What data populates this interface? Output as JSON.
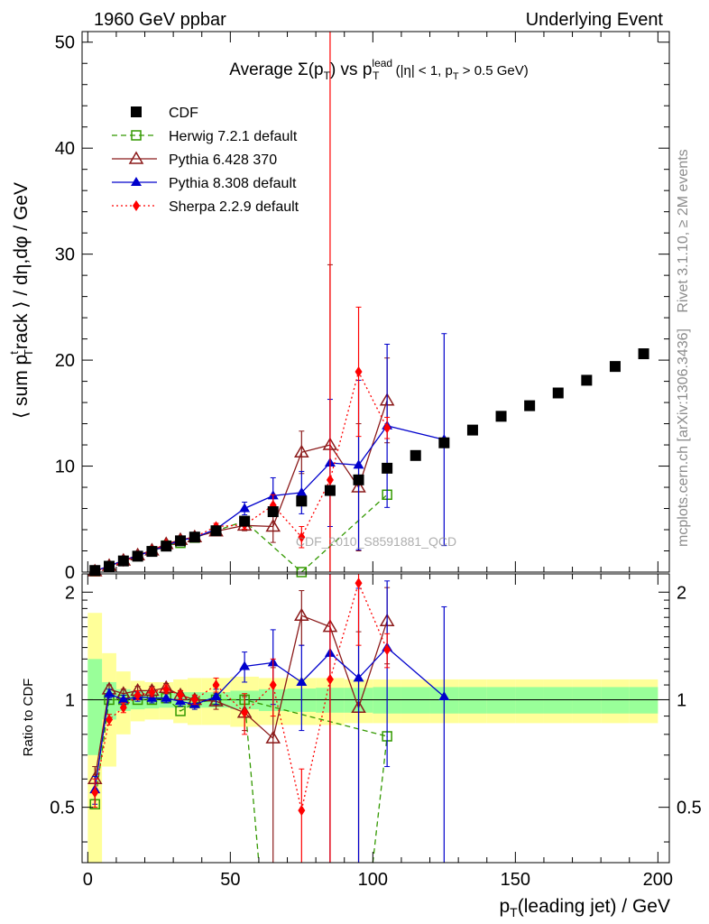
{
  "header": {
    "left": "1960 GeV ppbar",
    "right": "Underlying Event"
  },
  "side_labels": {
    "rivet": "Rivet 3.1.10, ≥ 2M events",
    "mcplots": "mcplots.cern.ch [arXiv:1306.3436]"
  },
  "watermark": "CDF_2010_S8591881_QCD",
  "chart_data": [
    {
      "type": "scatter",
      "title": {
        "prefix": "Average ",
        "sigma": "Σ(p",
        "sub_t": "T",
        "vs": ") vs p",
        "sup_lead": "lead",
        "sub_t2": "T",
        "cuts_a": " (|η| < 1, p",
        "sub_t3": "T",
        "cuts_b": " > 0.5 GeV)"
      },
      "ylabel": {
        "a": "⟨ sum p",
        "sup": "t",
        "sub": "T",
        "b": "rack ⟩ / dη,dφ / GeV"
      },
      "ylim": [
        0,
        51
      ],
      "xlim": [
        -2,
        204
      ],
      "y_ticks": [
        0,
        10,
        20,
        30,
        40,
        50
      ],
      "grid": false,
      "legend_position": "top-left",
      "series": [
        {
          "name": "CDF",
          "color": "#000000",
          "marker": "square-filled",
          "x": [
            2.5,
            7.5,
            12.5,
            17.5,
            22.5,
            27.5,
            32.5,
            37.5,
            45,
            55,
            65,
            75,
            85,
            95,
            105,
            115,
            125,
            135,
            145,
            155,
            165,
            175,
            185,
            195
          ],
          "y": [
            0.15,
            0.55,
            1.05,
            1.5,
            1.95,
            2.45,
            2.95,
            3.3,
            3.9,
            4.8,
            5.7,
            6.7,
            7.7,
            8.7,
            9.8,
            11.0,
            12.2,
            13.4,
            14.7,
            15.7,
            16.9,
            18.1,
            19.4,
            20.6
          ]
        },
        {
          "name": "Herwig 7.2.1 default",
          "color": "#339900",
          "marker": "square-open",
          "line": "dashed",
          "x": [
            2.5,
            7.5,
            12.5,
            17.5,
            22.5,
            27.5,
            32.5,
            37.5,
            45,
            55,
            75,
            105
          ],
          "y": [
            0.08,
            0.55,
            1.05,
            1.5,
            1.95,
            2.5,
            2.75,
            3.25,
            3.9,
            4.8,
            0.0,
            7.3
          ]
        },
        {
          "name": "Pythia 6.428 370",
          "color": "#8b1a1a",
          "marker": "triangle-open",
          "line": "solid",
          "x": [
            2.5,
            7.5,
            12.5,
            17.5,
            22.5,
            27.5,
            32.5,
            37.5,
            45,
            55,
            65,
            75,
            85,
            95,
            105
          ],
          "y": [
            0.08,
            0.6,
            1.1,
            1.6,
            2.05,
            2.65,
            3.05,
            3.3,
            3.85,
            4.4,
            4.3,
            11.3,
            12.0,
            8.0,
            16.2
          ],
          "err": [
            0.05,
            0.05,
            0.05,
            0.05,
            0.1,
            0.1,
            0.15,
            0.15,
            0.2,
            0.5,
            1.5,
            2.0,
            17.0,
            6.0,
            4.0
          ]
        },
        {
          "name": "Pythia 8.308 default",
          "color": "#0000cc",
          "marker": "triangle-filled",
          "line": "solid",
          "x": [
            2.5,
            7.5,
            12.5,
            17.5,
            22.5,
            27.5,
            32.5,
            37.5,
            45,
            55,
            65,
            75,
            85,
            95,
            105,
            125
          ],
          "y": [
            0.09,
            0.58,
            1.07,
            1.55,
            2.0,
            2.5,
            3.0,
            3.25,
            4.05,
            6.0,
            7.2,
            7.5,
            10.3,
            10.1,
            13.8,
            12.5
          ],
          "err": [
            0.05,
            0.05,
            0.05,
            0.05,
            0.1,
            0.1,
            0.1,
            0.15,
            0.2,
            0.6,
            1.7,
            2.0,
            6.0,
            8.0,
            7.7,
            10.0
          ]
        },
        {
          "name": "Sherpa 2.2.9 default",
          "color": "#ff0000",
          "marker": "diamond-filled",
          "line": "dotted",
          "x": [
            2.5,
            7.5,
            12.5,
            17.5,
            22.5,
            27.5,
            32.5,
            37.5,
            45,
            55,
            65,
            75,
            85,
            95,
            105
          ],
          "y": [
            0.08,
            0.48,
            1.0,
            1.55,
            2.05,
            2.65,
            3.05,
            3.3,
            4.3,
            4.45,
            6.3,
            3.3,
            8.7,
            18.9,
            13.6
          ],
          "err": [
            0.05,
            0.05,
            0.05,
            0.05,
            0.1,
            0.1,
            0.1,
            0.15,
            0.3,
            0.4,
            1.0,
            1.0,
            200,
            6.1,
            1.0
          ]
        }
      ]
    },
    {
      "type": "scatter",
      "ylabel": "Ratio to CDF",
      "xlabel": {
        "a": "p",
        "sub": "T",
        "b": "(leading jet) / GeV"
      },
      "xlim": [
        -2,
        204
      ],
      "ylim": [
        0.35,
        2.25
      ],
      "y_scale": "log",
      "y_ticks": [
        0.5,
        1,
        2
      ],
      "x_ticks": [
        0,
        50,
        100,
        150,
        200
      ],
      "reference_line": 1,
      "bands": {
        "inner_color": "#99ff99",
        "outer_color": "#ffff99",
        "edges": [
          0,
          5,
          10,
          15,
          20,
          25,
          30,
          35,
          40,
          50,
          60,
          70,
          80,
          90,
          100,
          110,
          120,
          130,
          140,
          150,
          160,
          170,
          180,
          190,
          200
        ],
        "inner": [
          0.3,
          0.12,
          0.07,
          0.06,
          0.055,
          0.05,
          0.05,
          0.05,
          0.05,
          0.06,
          0.07,
          0.075,
          0.08,
          0.08,
          0.085,
          0.085,
          0.085,
          0.085,
          0.085,
          0.085,
          0.085,
          0.085,
          0.085,
          0.085
        ],
        "outer": [
          0.75,
          0.35,
          0.2,
          0.13,
          0.12,
          0.12,
          0.14,
          0.15,
          0.15,
          0.16,
          0.15,
          0.15,
          0.15,
          0.14,
          0.14,
          0.14,
          0.14,
          0.14,
          0.14,
          0.14,
          0.14,
          0.14,
          0.14,
          0.14
        ]
      },
      "series": [
        {
          "name": "Herwig 7.2.1 default",
          "color": "#339900",
          "marker": "square-open",
          "line": "dashed",
          "x": [
            2.5,
            7.5,
            12.5,
            17.5,
            22.5,
            27.5,
            32.5,
            37.5,
            45,
            55,
            105
          ],
          "y": [
            0.51,
            1.0,
            1.0,
            1.0,
            1.0,
            1.01,
            0.93,
            0.98,
            1.0,
            1.0,
            0.79
          ],
          "breaks_below": [
            [
              55,
              60,
              0.35
            ],
            [
              100,
              105,
              0.35
            ]
          ]
        },
        {
          "name": "Pythia 6.428 370",
          "color": "#8b1a1a",
          "marker": "triangle-open",
          "line": "solid",
          "x": [
            2.5,
            7.5,
            12.5,
            17.5,
            22.5,
            27.5,
            32.5,
            37.5,
            45,
            55,
            65,
            75,
            85,
            95,
            105
          ],
          "y": [
            0.6,
            1.07,
            1.04,
            1.06,
            1.06,
            1.08,
            1.03,
            1.0,
            0.99,
            0.92,
            0.78,
            1.72,
            1.6,
            0.95,
            1.66
          ],
          "err": [
            0.05,
            0.03,
            0.03,
            0.03,
            0.03,
            0.03,
            0.03,
            0.03,
            0.05,
            0.1,
            0.45,
            0.3,
            2.0,
            0.6,
            0.4
          ]
        },
        {
          "name": "Pythia 8.308 default",
          "color": "#0000cc",
          "marker": "triangle-filled",
          "line": "solid",
          "x": [
            2.5,
            7.5,
            12.5,
            17.5,
            22.5,
            27.5,
            32.5,
            37.5,
            45,
            55,
            65,
            75,
            85,
            95,
            105,
            125
          ],
          "y": [
            0.56,
            1.04,
            1.0,
            1.02,
            1.01,
            1.01,
            0.99,
            0.97,
            1.02,
            1.24,
            1.27,
            1.12,
            1.35,
            1.15,
            1.4,
            1.02
          ],
          "err": [
            0.05,
            0.03,
            0.03,
            0.03,
            0.03,
            0.03,
            0.03,
            0.03,
            0.05,
            0.12,
            0.3,
            0.3,
            1.5,
            0.9,
            0.75,
            0.8
          ]
        },
        {
          "name": "Sherpa 2.2.9 default",
          "color": "#ff0000",
          "marker": "diamond-filled",
          "line": "dotted",
          "x": [
            2.5,
            7.5,
            12.5,
            17.5,
            22.5,
            27.5,
            32.5,
            37.5,
            45,
            55,
            65,
            75,
            85,
            95,
            105
          ],
          "y": [
            0.55,
            0.88,
            0.95,
            1.03,
            1.05,
            1.07,
            1.03,
            1.0,
            1.1,
            0.92,
            1.1,
            0.49,
            1.14,
            2.12,
            1.38
          ],
          "err": [
            0.05,
            0.03,
            0.03,
            0.03,
            0.03,
            0.03,
            0.03,
            0.03,
            0.05,
            0.12,
            0.2,
            0.15,
            3.0,
            0.7,
            0.15
          ]
        }
      ]
    }
  ]
}
